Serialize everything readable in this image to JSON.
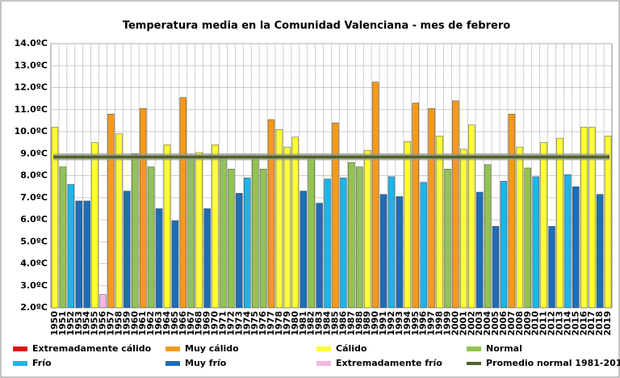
{
  "chart_data": {
    "type": "bar",
    "title": "Temperatura media en la Comunidad Valenciana - mes de febrero",
    "categories": [
      "1950",
      "1951",
      "1952",
      "1953",
      "1954",
      "1955",
      "1956",
      "1957",
      "1958",
      "1959",
      "1960",
      "1961",
      "1962",
      "1963",
      "1964",
      "1965",
      "1966",
      "1967",
      "1968",
      "1969",
      "1970",
      "1971",
      "1972",
      "1973",
      "1974",
      "1975",
      "1976",
      "1977",
      "1978",
      "1979",
      "1980",
      "1981",
      "1982",
      "1983",
      "1984",
      "1985",
      "1986",
      "1987",
      "1988",
      "1989",
      "1990",
      "1991",
      "1992",
      "1993",
      "1994",
      "1995",
      "1996",
      "1997",
      "1998",
      "1999",
      "2000",
      "2001",
      "2002",
      "2003",
      "2004",
      "2005",
      "2006",
      "2007",
      "2008",
      "2009",
      "2010",
      "2011",
      "2012",
      "2013",
      "2014",
      "2015",
      "2016",
      "2017",
      "2018",
      "2019"
    ],
    "series": [
      {
        "name": "Extremadamente cálido",
        "color": "#e01010",
        "values": [
          null,
          null,
          null,
          null,
          null,
          null,
          null,
          null,
          null,
          null,
          null,
          null,
          null,
          null,
          null,
          null,
          null,
          null,
          null,
          null,
          null,
          null,
          null,
          null,
          null,
          null,
          null,
          null,
          null,
          null,
          null,
          null,
          null,
          null,
          null,
          null,
          null,
          null,
          null,
          null,
          null,
          null,
          null,
          null,
          null,
          null,
          null,
          null,
          null,
          null,
          null,
          null,
          null,
          null,
          null,
          null,
          null,
          null,
          null,
          null,
          null,
          null,
          null,
          null,
          null,
          null,
          null,
          null,
          null,
          null
        ]
      },
      {
        "name": "Muy cálido",
        "color": "#f39a1e",
        "values": [
          null,
          null,
          null,
          null,
          null,
          null,
          null,
          10.8,
          null,
          null,
          null,
          11.05,
          null,
          null,
          null,
          null,
          11.55,
          null,
          null,
          null,
          null,
          null,
          null,
          null,
          null,
          null,
          null,
          10.55,
          null,
          null,
          null,
          null,
          null,
          null,
          null,
          10.4,
          null,
          null,
          null,
          null,
          12.25,
          null,
          null,
          null,
          null,
          11.3,
          null,
          11.05,
          null,
          null,
          11.4,
          null,
          null,
          null,
          null,
          null,
          null,
          10.8,
          null,
          null,
          null,
          null,
          null,
          null,
          null,
          null,
          null,
          null,
          null,
          null
        ]
      },
      {
        "name": "Cálido",
        "color": "#ffff33",
        "values": [
          10.2,
          null,
          null,
          null,
          null,
          9.5,
          null,
          null,
          9.9,
          null,
          null,
          null,
          null,
          null,
          9.4,
          null,
          null,
          null,
          9.05,
          null,
          9.4,
          null,
          null,
          null,
          null,
          null,
          null,
          null,
          10.1,
          9.3,
          9.75,
          null,
          null,
          null,
          null,
          null,
          null,
          null,
          null,
          9.15,
          null,
          null,
          null,
          null,
          9.55,
          null,
          null,
          null,
          9.8,
          null,
          null,
          9.2,
          10.3,
          null,
          null,
          null,
          null,
          null,
          9.3,
          null,
          null,
          9.5,
          null,
          9.7,
          null,
          null,
          10.2,
          10.2,
          null,
          9.8
        ]
      },
      {
        "name": "Normal",
        "color": "#92c353",
        "values": [
          null,
          8.4,
          null,
          null,
          null,
          null,
          null,
          null,
          null,
          null,
          9.0,
          null,
          8.4,
          null,
          null,
          null,
          null,
          8.9,
          null,
          null,
          null,
          8.8,
          8.3,
          null,
          null,
          8.8,
          8.3,
          null,
          null,
          null,
          null,
          null,
          8.8,
          null,
          null,
          null,
          null,
          8.6,
          8.4,
          null,
          null,
          null,
          null,
          null,
          null,
          null,
          null,
          null,
          null,
          8.3,
          null,
          null,
          null,
          null,
          8.5,
          null,
          null,
          null,
          null,
          8.35,
          null,
          null,
          null,
          null,
          null,
          null,
          null,
          null,
          null,
          null
        ]
      },
      {
        "name": "Frío",
        "color": "#1fb4e6",
        "values": [
          null,
          null,
          7.6,
          null,
          null,
          null,
          null,
          null,
          null,
          null,
          null,
          null,
          null,
          null,
          null,
          null,
          null,
          null,
          null,
          null,
          null,
          null,
          null,
          null,
          7.9,
          null,
          null,
          null,
          null,
          null,
          null,
          null,
          null,
          null,
          7.85,
          null,
          7.9,
          null,
          null,
          null,
          null,
          null,
          7.95,
          null,
          null,
          null,
          7.7,
          null,
          null,
          null,
          null,
          null,
          null,
          null,
          null,
          null,
          7.75,
          null,
          null,
          null,
          7.95,
          null,
          null,
          null,
          8.05,
          null,
          null,
          null,
          null,
          null
        ]
      },
      {
        "name": "Muy frío",
        "color": "#1f6db5",
        "values": [
          null,
          null,
          null,
          6.85,
          6.85,
          null,
          null,
          null,
          null,
          7.3,
          null,
          null,
          null,
          6.5,
          null,
          5.95,
          null,
          null,
          null,
          6.5,
          null,
          null,
          null,
          7.2,
          null,
          null,
          null,
          null,
          null,
          null,
          null,
          7.3,
          null,
          6.75,
          null,
          null,
          null,
          null,
          null,
          null,
          null,
          7.15,
          null,
          7.05,
          null,
          null,
          null,
          null,
          null,
          null,
          null,
          null,
          null,
          7.25,
          null,
          5.7,
          null,
          null,
          null,
          null,
          null,
          null,
          5.7,
          null,
          null,
          7.5,
          null,
          null,
          7.15,
          null
        ]
      },
      {
        "name": "Extremadamente frío",
        "color": "#f4b8e2",
        "values": [
          null,
          null,
          null,
          null,
          null,
          null,
          2.6,
          null,
          null,
          null,
          null,
          null,
          null,
          null,
          null,
          null,
          null,
          null,
          null,
          null,
          null,
          null,
          null,
          null,
          null,
          null,
          null,
          null,
          null,
          null,
          null,
          null,
          null,
          null,
          null,
          null,
          null,
          null,
          null,
          null,
          null,
          null,
          null,
          null,
          null,
          null,
          null,
          null,
          null,
          null,
          null,
          null,
          null,
          null,
          null,
          null,
          null,
          null,
          null,
          null,
          null,
          null,
          null,
          null,
          null,
          null,
          null,
          null,
          null,
          null
        ]
      }
    ],
    "reference_line": {
      "name": "Promedio normal 1981-2010",
      "value": 8.85,
      "color": "#4f6228"
    },
    "ylim": [
      2,
      14
    ],
    "yticks": [
      {
        "value": 2,
        "label": "2.0ºC"
      },
      {
        "value": 3,
        "label": "3.0ºC"
      },
      {
        "value": 4,
        "label": "4.0ºC"
      },
      {
        "value": 5,
        "label": "5.0ºC"
      },
      {
        "value": 6,
        "label": "6.0ºC"
      },
      {
        "value": 7,
        "label": "7.0ºC"
      },
      {
        "value": 8,
        "label": "8.0ºC"
      },
      {
        "value": 9,
        "label": "9.0ºC"
      },
      {
        "value": 10,
        "label": "10.0ºC"
      },
      {
        "value": 11,
        "label": "11.0ºC"
      },
      {
        "value": 12,
        "label": "12.0ºC"
      },
      {
        "value": 13,
        "label": "13.0ºC"
      },
      {
        "value": 14,
        "label": "14.0ºC"
      }
    ],
    "grid": true
  }
}
